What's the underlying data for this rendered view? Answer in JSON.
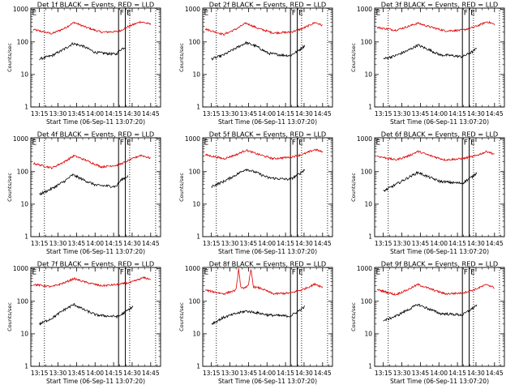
{
  "chart_data": {
    "type": "line",
    "time_label": "Start Time (06-Sep-11 13:07:20)",
    "ylabel": "Counts/sec",
    "x_ticks": [
      "13:15",
      "13:30",
      "13:45",
      "14:00",
      "14:15",
      "14:30",
      "14:45"
    ],
    "x_tick_values_min": [
      0,
      15,
      30,
      45,
      60,
      75,
      90
    ],
    "xlim_min": [
      -7,
      98
    ],
    "y_ticks": [
      "1",
      "10",
      "100",
      "1000"
    ],
    "y_tick_values": [
      1,
      10,
      100,
      1000
    ],
    "ylim": [
      1,
      1100
    ],
    "y_scale": "log",
    "colors": {
      "events": "#000000",
      "lld": "#dd0000"
    },
    "marker_lines_min": [
      {
        "label": "",
        "x": 4,
        "style": "dotted"
      },
      {
        "label": "F",
        "x": 64,
        "style": "solid"
      },
      {
        "label": "E",
        "x": 69.5,
        "style": "solid"
      },
      {
        "label": "",
        "x": 73,
        "style": "dotted"
      },
      {
        "label": "",
        "x": 94,
        "style": "dotted"
      }
    ],
    "panels": [
      {
        "title": "Det 1f BLACK = Events, RED = LLD",
        "corner_label": "E",
        "events": [
          {
            "x": 0,
            "y": 30
          },
          {
            "x": 10,
            "y": 38
          },
          {
            "x": 20,
            "y": 60
          },
          {
            "x": 27,
            "y": 90
          },
          {
            "x": 35,
            "y": 75
          },
          {
            "x": 45,
            "y": 48
          },
          {
            "x": 55,
            "y": 44
          },
          {
            "x": 62,
            "y": 42
          },
          {
            "x": 66,
            "y": 60
          },
          {
            "x": 70,
            "y": 70
          }
        ],
        "lld": [
          {
            "x": -5,
            "y": 240
          },
          {
            "x": 10,
            "y": 180
          },
          {
            "x": 20,
            "y": 260
          },
          {
            "x": 28,
            "y": 400
          },
          {
            "x": 38,
            "y": 280
          },
          {
            "x": 50,
            "y": 200
          },
          {
            "x": 64,
            "y": 210
          },
          {
            "x": 72,
            "y": 300
          },
          {
            "x": 82,
            "y": 420
          },
          {
            "x": 90,
            "y": 350
          }
        ]
      },
      {
        "title": "Det 2f BLACK = Events, RED = LLD",
        "corner_label": "E",
        "events": [
          {
            "x": 0,
            "y": 30
          },
          {
            "x": 10,
            "y": 40
          },
          {
            "x": 20,
            "y": 65
          },
          {
            "x": 28,
            "y": 95
          },
          {
            "x": 36,
            "y": 75
          },
          {
            "x": 46,
            "y": 45
          },
          {
            "x": 56,
            "y": 40
          },
          {
            "x": 64,
            "y": 38
          },
          {
            "x": 72,
            "y": 60
          },
          {
            "x": 76,
            "y": 80
          }
        ],
        "lld": [
          {
            "x": -5,
            "y": 250
          },
          {
            "x": 10,
            "y": 170
          },
          {
            "x": 20,
            "y": 250
          },
          {
            "x": 28,
            "y": 380
          },
          {
            "x": 38,
            "y": 260
          },
          {
            "x": 50,
            "y": 190
          },
          {
            "x": 64,
            "y": 200
          },
          {
            "x": 74,
            "y": 260
          },
          {
            "x": 84,
            "y": 400
          },
          {
            "x": 90,
            "y": 320
          }
        ]
      },
      {
        "title": "Det 3f BLACK = Events, RED = LLD",
        "corner_label": "E",
        "events": [
          {
            "x": 0,
            "y": 30
          },
          {
            "x": 10,
            "y": 38
          },
          {
            "x": 20,
            "y": 55
          },
          {
            "x": 28,
            "y": 80
          },
          {
            "x": 36,
            "y": 60
          },
          {
            "x": 46,
            "y": 40
          },
          {
            "x": 56,
            "y": 38
          },
          {
            "x": 64,
            "y": 35
          },
          {
            "x": 72,
            "y": 50
          },
          {
            "x": 76,
            "y": 65
          }
        ],
        "lld": [
          {
            "x": -5,
            "y": 280
          },
          {
            "x": 10,
            "y": 230
          },
          {
            "x": 20,
            "y": 300
          },
          {
            "x": 28,
            "y": 380
          },
          {
            "x": 38,
            "y": 290
          },
          {
            "x": 50,
            "y": 220
          },
          {
            "x": 64,
            "y": 230
          },
          {
            "x": 74,
            "y": 290
          },
          {
            "x": 84,
            "y": 420
          },
          {
            "x": 90,
            "y": 350
          }
        ]
      },
      {
        "title": "Det 4f BLACK = Events, RED = LLD",
        "corner_label": "E",
        "events": [
          {
            "x": 0,
            "y": 20
          },
          {
            "x": 10,
            "y": 30
          },
          {
            "x": 20,
            "y": 50
          },
          {
            "x": 27,
            "y": 80
          },
          {
            "x": 36,
            "y": 55
          },
          {
            "x": 46,
            "y": 38
          },
          {
            "x": 56,
            "y": 36
          },
          {
            "x": 62,
            "y": 35
          },
          {
            "x": 66,
            "y": 55
          },
          {
            "x": 72,
            "y": 75
          }
        ],
        "lld": [
          {
            "x": -5,
            "y": 180
          },
          {
            "x": 10,
            "y": 130
          },
          {
            "x": 20,
            "y": 200
          },
          {
            "x": 28,
            "y": 310
          },
          {
            "x": 38,
            "y": 220
          },
          {
            "x": 50,
            "y": 140
          },
          {
            "x": 64,
            "y": 160
          },
          {
            "x": 72,
            "y": 220
          },
          {
            "x": 82,
            "y": 320
          },
          {
            "x": 90,
            "y": 260
          }
        ]
      },
      {
        "title": "Det 5f BLACK = Events, RED = LLD",
        "corner_label": "E",
        "events": [
          {
            "x": 0,
            "y": 35
          },
          {
            "x": 10,
            "y": 50
          },
          {
            "x": 20,
            "y": 80
          },
          {
            "x": 28,
            "y": 120
          },
          {
            "x": 36,
            "y": 95
          },
          {
            "x": 46,
            "y": 65
          },
          {
            "x": 56,
            "y": 60
          },
          {
            "x": 64,
            "y": 58
          },
          {
            "x": 72,
            "y": 90
          },
          {
            "x": 76,
            "y": 120
          }
        ],
        "lld": [
          {
            "x": -5,
            "y": 330
          },
          {
            "x": 10,
            "y": 250
          },
          {
            "x": 20,
            "y": 330
          },
          {
            "x": 28,
            "y": 460
          },
          {
            "x": 38,
            "y": 340
          },
          {
            "x": 50,
            "y": 250
          },
          {
            "x": 64,
            "y": 280
          },
          {
            "x": 74,
            "y": 340
          },
          {
            "x": 84,
            "y": 480
          },
          {
            "x": 90,
            "y": 400
          }
        ]
      },
      {
        "title": "Det 6f BLACK = Events, RED = LLD",
        "corner_label": "E",
        "events": [
          {
            "x": 0,
            "y": 25
          },
          {
            "x": 10,
            "y": 40
          },
          {
            "x": 20,
            "y": 65
          },
          {
            "x": 28,
            "y": 95
          },
          {
            "x": 36,
            "y": 70
          },
          {
            "x": 46,
            "y": 50
          },
          {
            "x": 56,
            "y": 46
          },
          {
            "x": 64,
            "y": 44
          },
          {
            "x": 72,
            "y": 70
          },
          {
            "x": 76,
            "y": 95
          }
        ],
        "lld": [
          {
            "x": -5,
            "y": 300
          },
          {
            "x": 10,
            "y": 230
          },
          {
            "x": 20,
            "y": 300
          },
          {
            "x": 28,
            "y": 420
          },
          {
            "x": 38,
            "y": 310
          },
          {
            "x": 50,
            "y": 230
          },
          {
            "x": 64,
            "y": 250
          },
          {
            "x": 74,
            "y": 300
          },
          {
            "x": 84,
            "y": 420
          },
          {
            "x": 90,
            "y": 340
          }
        ]
      },
      {
        "title": "Det 7f BLACK = Events, RED = LLD",
        "corner_label": "E",
        "events": [
          {
            "x": 0,
            "y": 20
          },
          {
            "x": 10,
            "y": 30
          },
          {
            "x": 20,
            "y": 55
          },
          {
            "x": 28,
            "y": 80
          },
          {
            "x": 36,
            "y": 55
          },
          {
            "x": 46,
            "y": 38
          },
          {
            "x": 56,
            "y": 35
          },
          {
            "x": 64,
            "y": 34
          },
          {
            "x": 72,
            "y": 55
          },
          {
            "x": 76,
            "y": 70
          }
        ],
        "lld": [
          {
            "x": -5,
            "y": 330
          },
          {
            "x": 10,
            "y": 280
          },
          {
            "x": 20,
            "y": 370
          },
          {
            "x": 28,
            "y": 500
          },
          {
            "x": 38,
            "y": 380
          },
          {
            "x": 50,
            "y": 300
          },
          {
            "x": 64,
            "y": 330
          },
          {
            "x": 74,
            "y": 380
          },
          {
            "x": 84,
            "y": 530
          },
          {
            "x": 90,
            "y": 480
          }
        ]
      },
      {
        "title": "Det 8f BLACK = Events, RED = LLD",
        "corner_label": "E",
        "events": [
          {
            "x": 0,
            "y": 20
          },
          {
            "x": 10,
            "y": 32
          },
          {
            "x": 20,
            "y": 42
          },
          {
            "x": 28,
            "y": 50
          },
          {
            "x": 36,
            "y": 45
          },
          {
            "x": 46,
            "y": 38
          },
          {
            "x": 56,
            "y": 36
          },
          {
            "x": 64,
            "y": 35
          },
          {
            "x": 72,
            "y": 55
          },
          {
            "x": 76,
            "y": 70
          }
        ],
        "lld": [
          {
            "x": -5,
            "y": 220
          },
          {
            "x": 10,
            "y": 170
          },
          {
            "x": 20,
            "y": 220
          },
          {
            "x": 22,
            "y": 1000
          },
          {
            "x": 24,
            "y": 240
          },
          {
            "x": 30,
            "y": 300
          },
          {
            "x": 32,
            "y": 1000
          },
          {
            "x": 34,
            "y": 280
          },
          {
            "x": 40,
            "y": 250
          },
          {
            "x": 50,
            "y": 170
          },
          {
            "x": 64,
            "y": 180
          },
          {
            "x": 74,
            "y": 230
          },
          {
            "x": 84,
            "y": 340
          },
          {
            "x": 90,
            "y": 270
          }
        ]
      },
      {
        "title": "Det 9f BLACK = Events, RED = LLD",
        "corner_label": "E",
        "events": [
          {
            "x": 0,
            "y": 25
          },
          {
            "x": 10,
            "y": 35
          },
          {
            "x": 20,
            "y": 55
          },
          {
            "x": 28,
            "y": 80
          },
          {
            "x": 36,
            "y": 60
          },
          {
            "x": 46,
            "y": 42
          },
          {
            "x": 56,
            "y": 40
          },
          {
            "x": 64,
            "y": 38
          },
          {
            "x": 72,
            "y": 60
          },
          {
            "x": 76,
            "y": 80
          }
        ],
        "lld": [
          {
            "x": -5,
            "y": 230
          },
          {
            "x": 10,
            "y": 160
          },
          {
            "x": 20,
            "y": 230
          },
          {
            "x": 28,
            "y": 330
          },
          {
            "x": 38,
            "y": 240
          },
          {
            "x": 50,
            "y": 170
          },
          {
            "x": 64,
            "y": 180
          },
          {
            "x": 74,
            "y": 230
          },
          {
            "x": 84,
            "y": 330
          },
          {
            "x": 90,
            "y": 260
          }
        ]
      }
    ]
  }
}
